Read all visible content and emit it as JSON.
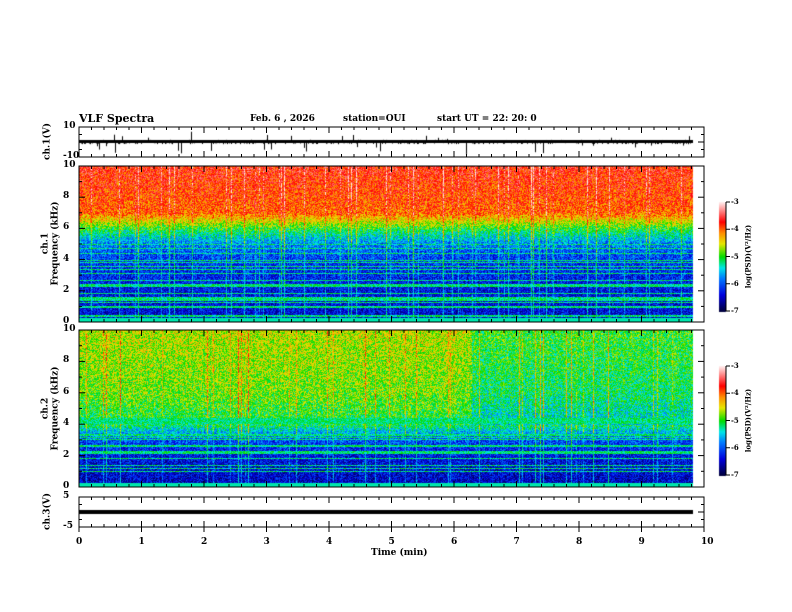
{
  "header": {
    "title": "VLF Spectra",
    "date": "Feb. 6  , 2026",
    "station": "station=OUI",
    "start": "start  UT =   22: 20: 0"
  },
  "chart_data": {
    "type": "heatmap",
    "xlabel": "Time (min)",
    "xlim": [
      0,
      10
    ],
    "xticks": [
      "0",
      "1",
      "2",
      "3",
      "4",
      "5",
      "6",
      "7",
      "8",
      "9",
      "10"
    ],
    "data_end_min": 9.83,
    "panels": [
      {
        "name": "ch1-waveform",
        "type": "line",
        "ylabel": "ch.1(V)",
        "ylim": [
          -10,
          10
        ],
        "yticks": [
          "10",
          "-10"
        ],
        "baseline": 0
      },
      {
        "name": "ch1-spectrogram",
        "type": "heatmap",
        "ylabel_line1": "ch.1",
        "ylabel_line2": "Frequency (kHz)",
        "ylim": [
          0,
          10
        ],
        "yticks": [
          "0",
          "2",
          "4",
          "6",
          "8",
          "10"
        ],
        "colorbar": {
          "label": "log(PSD)(V²/Hz)",
          "range": [
            -7,
            -3
          ],
          "ticks": [
            "-3",
            "-4",
            "-5",
            "-6",
            "-7"
          ]
        },
        "profile_khz": [
          0,
          2,
          4,
          5,
          6,
          7,
          10
        ],
        "profile_logpsd": [
          -6.4,
          -6.3,
          -6.1,
          -5.8,
          -5.0,
          -4.0,
          -3.7
        ]
      },
      {
        "name": "ch2-spectrogram",
        "type": "heatmap",
        "ylabel_line1": "ch.2",
        "ylabel_line2": "Frequency (kHz)",
        "ylim": [
          0,
          10
        ],
        "yticks": [
          "0",
          "2",
          "4",
          "6",
          "8",
          "10"
        ],
        "colorbar": {
          "label": "log(PSD)(V²/Hz)",
          "range": [
            -7,
            -3
          ],
          "ticks": [
            "-3",
            "-4",
            "-5",
            "-6",
            "-7"
          ]
        },
        "profile_khz": [
          0,
          2,
          3,
          3.6,
          4,
          6,
          10
        ],
        "profile_logpsd": [
          -6.5,
          -6.3,
          -6.0,
          -5.5,
          -5.1,
          -4.8,
          -4.6
        ]
      },
      {
        "name": "ch3-waveform",
        "type": "line",
        "ylabel": "ch.3(V)",
        "ylim": [
          -5,
          5
        ],
        "yticks": [
          "5",
          "-5"
        ],
        "baseline": 0
      }
    ]
  }
}
